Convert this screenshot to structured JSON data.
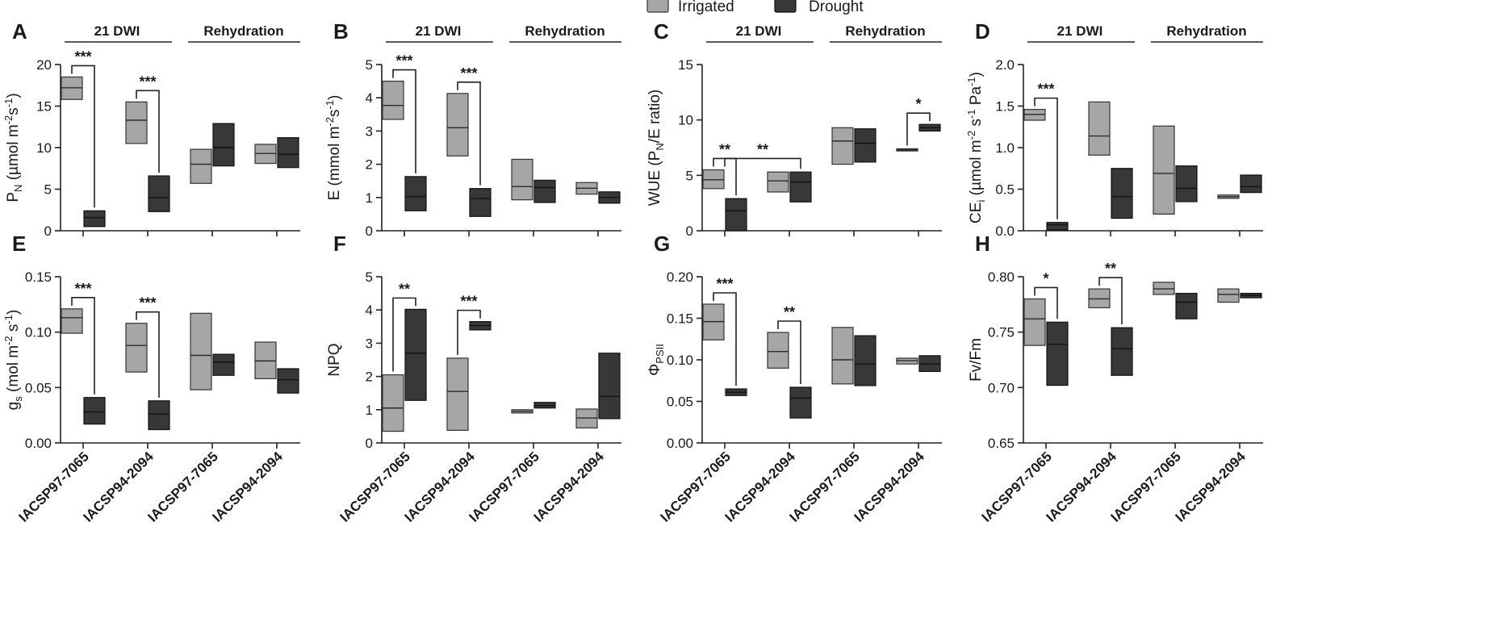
{
  "legend": [
    {
      "label": "Irrigated",
      "color": "#a6a6a6"
    },
    {
      "label": "Drought",
      "color": "#383838"
    }
  ],
  "categories": [
    "IACSP97-7065",
    "IACSP94-2094",
    "IACSP97-7065",
    "IACSP94-2094"
  ],
  "group_labels": [
    "21  DWI",
    "Rehydration"
  ],
  "chart_data": [
    {
      "type": "box",
      "panel": "A",
      "ylabel": "P<sub>N</sub> (µmol m<sup>-2</sup>s<sup>-1</sup>)",
      "ylim": [
        0,
        20
      ],
      "yticks": [
        0,
        5,
        10,
        15,
        20
      ],
      "series": [
        {
          "name": "Irrigated",
          "boxes": [
            [
              15.8,
              17.2,
              18.5
            ],
            [
              10.5,
              13.3,
              15.5
            ],
            [
              5.7,
              8.0,
              9.8
            ],
            [
              8.1,
              9.3,
              10.4
            ]
          ]
        },
        {
          "name": "Drought",
          "boxes": [
            [
              0.5,
              1.6,
              2.4
            ],
            [
              2.3,
              4.0,
              6.6
            ],
            [
              7.8,
              10.0,
              12.9
            ],
            [
              7.6,
              9.2,
              11.2
            ]
          ]
        }
      ],
      "significance": [
        {
          "category": 0,
          "label": "***"
        },
        {
          "category": 1,
          "label": "***"
        }
      ]
    },
    {
      "type": "box",
      "panel": "B",
      "ylabel": "E (mmol m<sup>-2</sup>s<sup>-1</sup>)",
      "ylim": [
        0,
        5
      ],
      "yticks": [
        0,
        1,
        2,
        3,
        4,
        5
      ],
      "series": [
        {
          "name": "Irrigated",
          "boxes": [
            [
              3.35,
              3.77,
              4.5
            ],
            [
              2.25,
              3.1,
              4.13
            ],
            [
              0.93,
              1.33,
              2.15
            ],
            [
              1.1,
              1.28,
              1.45
            ]
          ]
        },
        {
          "name": "Drought",
          "boxes": [
            [
              0.6,
              1.03,
              1.63
            ],
            [
              0.43,
              0.97,
              1.27
            ],
            [
              0.85,
              1.3,
              1.52
            ],
            [
              0.83,
              1.0,
              1.17
            ]
          ]
        }
      ],
      "significance": [
        {
          "category": 0,
          "label": "***"
        },
        {
          "category": 1,
          "label": "***"
        }
      ]
    },
    {
      "type": "box",
      "panel": "C",
      "ylabel": "WUE (P<sub>N</sub>/E ratio)",
      "ylim": [
        0,
        15
      ],
      "yticks": [
        0,
        5,
        10,
        15
      ],
      "series": [
        {
          "name": "Irrigated",
          "boxes": [
            [
              3.8,
              4.6,
              5.5
            ],
            [
              3.5,
              4.5,
              5.3
            ],
            [
              6.0,
              8.1,
              9.3
            ],
            [
              7.2,
              7.3,
              7.4
            ]
          ]
        },
        {
          "name": "Drought",
          "boxes": [
            [
              0.0,
              1.8,
              2.9
            ],
            [
              2.6,
              4.4,
              5.3
            ],
            [
              6.2,
              7.9,
              9.2
            ],
            [
              9.0,
              9.3,
              9.6
            ]
          ]
        }
      ],
      "significance": [
        {
          "category": 0,
          "label": "**"
        },
        {
          "category": 3,
          "label": "*"
        }
      ],
      "extra_significance": {
        "label": "**",
        "from_category": 0,
        "to_category": 1
      }
    },
    {
      "type": "box",
      "panel": "D",
      "ylabel": "CE<sub>i</sub> (µmol m<sup>-2</sup> s<sup>-1</sup> Pa<sup>-1</sup>)",
      "ylim": [
        0,
        2.0
      ],
      "yticks": [
        "0.0",
        "0.5",
        "1.0",
        "1.5",
        "2.0"
      ],
      "series": [
        {
          "name": "Irrigated",
          "boxes": [
            [
              1.33,
              1.4,
              1.46
            ],
            [
              0.91,
              1.14,
              1.55
            ],
            [
              0.2,
              0.69,
              1.26
            ],
            [
              0.39,
              0.41,
              0.43
            ]
          ]
        },
        {
          "name": "Drought",
          "boxes": [
            [
              0.01,
              0.07,
              0.1
            ],
            [
              0.15,
              0.41,
              0.75
            ],
            [
              0.35,
              0.51,
              0.78
            ],
            [
              0.46,
              0.53,
              0.67
            ]
          ]
        }
      ],
      "significance": [
        {
          "category": 0,
          "label": "***"
        }
      ]
    },
    {
      "type": "box",
      "panel": "E",
      "ylabel": "g<sub>s</sub> (mol m<sup>-2</sup> s<sup>-1</sup>)",
      "ylim": [
        0,
        0.15
      ],
      "yticks": [
        "0.00",
        "0.05",
        "0.10",
        "0.15"
      ],
      "series": [
        {
          "name": "Irrigated",
          "boxes": [
            [
              0.099,
              0.113,
              0.121
            ],
            [
              0.064,
              0.088,
              0.108
            ],
            [
              0.048,
              0.079,
              0.117
            ],
            [
              0.058,
              0.074,
              0.091
            ]
          ]
        },
        {
          "name": "Drought",
          "boxes": [
            [
              0.017,
              0.028,
              0.041
            ],
            [
              0.012,
              0.026,
              0.038
            ],
            [
              0.061,
              0.073,
              0.08
            ],
            [
              0.045,
              0.057,
              0.067
            ]
          ]
        }
      ],
      "significance": [
        {
          "category": 0,
          "label": "***"
        },
        {
          "category": 1,
          "label": "***"
        }
      ]
    },
    {
      "type": "box",
      "panel": "F",
      "ylabel": "NPQ",
      "ylim": [
        0,
        5
      ],
      "yticks": [
        0,
        1,
        2,
        3,
        4,
        5
      ],
      "series": [
        {
          "name": "Irrigated",
          "boxes": [
            [
              0.35,
              1.05,
              2.05
            ],
            [
              0.38,
              1.55,
              2.55
            ],
            [
              0.9,
              0.95,
              1.0
            ],
            [
              0.45,
              0.75,
              1.02
            ]
          ]
        },
        {
          "name": "Drought",
          "boxes": [
            [
              1.28,
              2.7,
              4.02
            ],
            [
              3.4,
              3.53,
              3.65
            ],
            [
              1.05,
              1.12,
              1.22
            ],
            [
              0.73,
              1.4,
              2.7
            ]
          ]
        }
      ],
      "significance": [
        {
          "category": 0,
          "label": "**"
        },
        {
          "category": 1,
          "label": "***"
        }
      ]
    },
    {
      "type": "box",
      "panel": "G",
      "ylabel": "Φ<sub>PSII</sub>",
      "ylim": [
        0,
        0.2
      ],
      "yticks": [
        "0.00",
        "0.05",
        "0.10",
        "0.15",
        "0.20"
      ],
      "series": [
        {
          "name": "Irrigated",
          "boxes": [
            [
              0.124,
              0.146,
              0.167
            ],
            [
              0.09,
              0.11,
              0.133
            ],
            [
              0.071,
              0.1,
              0.139
            ],
            [
              0.095,
              0.099,
              0.102
            ]
          ]
        },
        {
          "name": "Drought",
          "boxes": [
            [
              0.057,
              0.061,
              0.065
            ],
            [
              0.03,
              0.054,
              0.067
            ],
            [
              0.069,
              0.095,
              0.129
            ],
            [
              0.086,
              0.095,
              0.105
            ]
          ]
        }
      ],
      "significance": [
        {
          "category": 0,
          "label": "***"
        },
        {
          "category": 1,
          "label": "**"
        }
      ]
    },
    {
      "type": "box",
      "panel": "H",
      "ylabel": "Fv/Fm",
      "ylim": [
        0.65,
        0.8
      ],
      "yticks": [
        "0.65",
        "0.70",
        "0.75",
        "0.80"
      ],
      "series": [
        {
          "name": "Irrigated",
          "boxes": [
            [
              0.738,
              0.762,
              0.78
            ],
            [
              0.772,
              0.78,
              0.789
            ],
            [
              0.784,
              0.789,
              0.795
            ],
            [
              0.777,
              0.784,
              0.789
            ]
          ]
        },
        {
          "name": "Drought",
          "boxes": [
            [
              0.702,
              0.739,
              0.759
            ],
            [
              0.711,
              0.735,
              0.754
            ],
            [
              0.762,
              0.777,
              0.785
            ],
            [
              0.781,
              0.783,
              0.785
            ]
          ]
        }
      ],
      "significance": [
        {
          "category": 0,
          "label": "*"
        },
        {
          "category": 1,
          "label": "**"
        }
      ]
    }
  ]
}
